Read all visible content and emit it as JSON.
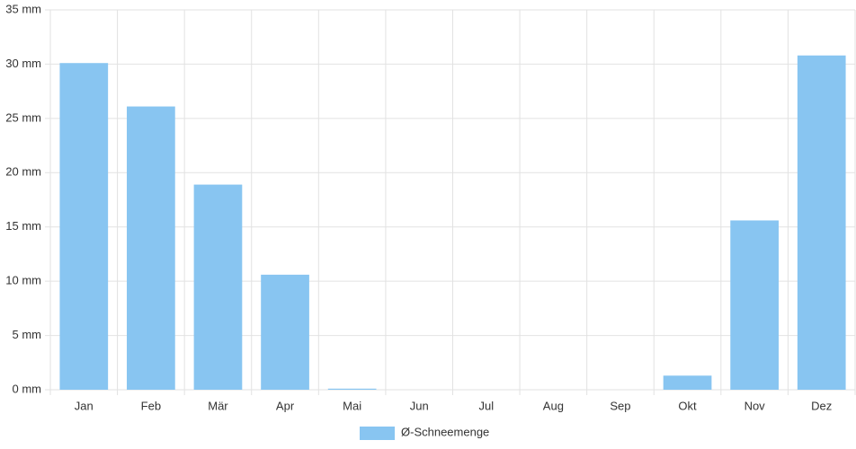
{
  "chart_data": {
    "type": "bar",
    "categories": [
      "Jan",
      "Feb",
      "Mär",
      "Apr",
      "Mai",
      "Jun",
      "Jul",
      "Aug",
      "Sep",
      "Okt",
      "Nov",
      "Dez"
    ],
    "series": [
      {
        "name": "Ø-Schneemenge",
        "color": "#88c5f1",
        "values": [
          30.1,
          26.1,
          18.9,
          10.6,
          0.1,
          0,
          0,
          0,
          0,
          1.3,
          15.6,
          30.8
        ]
      }
    ],
    "ylim": [
      0,
      35
    ],
    "yticks": [
      {
        "value": 0,
        "label": "0 mm"
      },
      {
        "value": 5,
        "label": "5 mm"
      },
      {
        "value": 10,
        "label": "10 mm"
      },
      {
        "value": 15,
        "label": "15 mm"
      },
      {
        "value": 20,
        "label": "20 mm"
      },
      {
        "value": 25,
        "label": "25 mm"
      },
      {
        "value": 30,
        "label": "30 mm"
      },
      {
        "value": 35,
        "label": "35 mm"
      }
    ],
    "grid": true,
    "legend": "bottom"
  }
}
